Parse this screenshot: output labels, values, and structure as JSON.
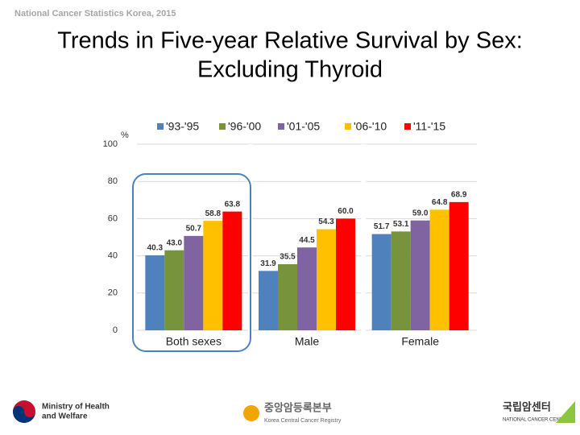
{
  "header": "National Cancer Statistics Korea, 2015",
  "chart_data": {
    "type": "bar",
    "title": [
      "Trends in Five-year Relative Survival by Sex:",
      "Excluding Thyroid"
    ],
    "y_unit": "%",
    "categories": [
      "Both sexes",
      "Male",
      "Female"
    ],
    "series": [
      {
        "name": "'93-'95",
        "color": "#4f81bd",
        "values": [
          40.3,
          31.9,
          51.7
        ],
        "value_labels": [
          "40.3",
          "31.9",
          "51.7"
        ]
      },
      {
        "name": "'96-'00",
        "color": "#77933c",
        "values": [
          43.0,
          35.5,
          53.1
        ],
        "value_labels": [
          "43.0",
          "35.5",
          "53.1"
        ]
      },
      {
        "name": "'01-'05",
        "color": "#8064a2",
        "values": [
          50.7,
          44.5,
          59.0
        ],
        "value_labels": [
          "50.7",
          "44.5",
          "59.0"
        ]
      },
      {
        "name": "'06-'10",
        "color": "#ffc000",
        "values": [
          58.8,
          54.3,
          64.8
        ],
        "value_labels": [
          "58.8",
          "54.3",
          "64.8"
        ]
      },
      {
        "name": "'11-'15",
        "color": "#ff0000",
        "values": [
          63.8,
          60.0,
          68.9
        ],
        "value_labels": [
          "63.8",
          "60.0",
          "68.9"
        ]
      }
    ],
    "ylim": [
      0,
      100
    ],
    "yticks": [
      0,
      20,
      40,
      60,
      80,
      100
    ],
    "grid": true,
    "legend": "top"
  },
  "footer": {
    "ministry": [
      "Ministry of Health",
      "and Welfare"
    ],
    "registry": [
      "중앙암등록본부",
      "Korea Central Cancer Registry"
    ],
    "center": [
      "국립암센터",
      "NATIONAL CANCER CENTER"
    ]
  }
}
